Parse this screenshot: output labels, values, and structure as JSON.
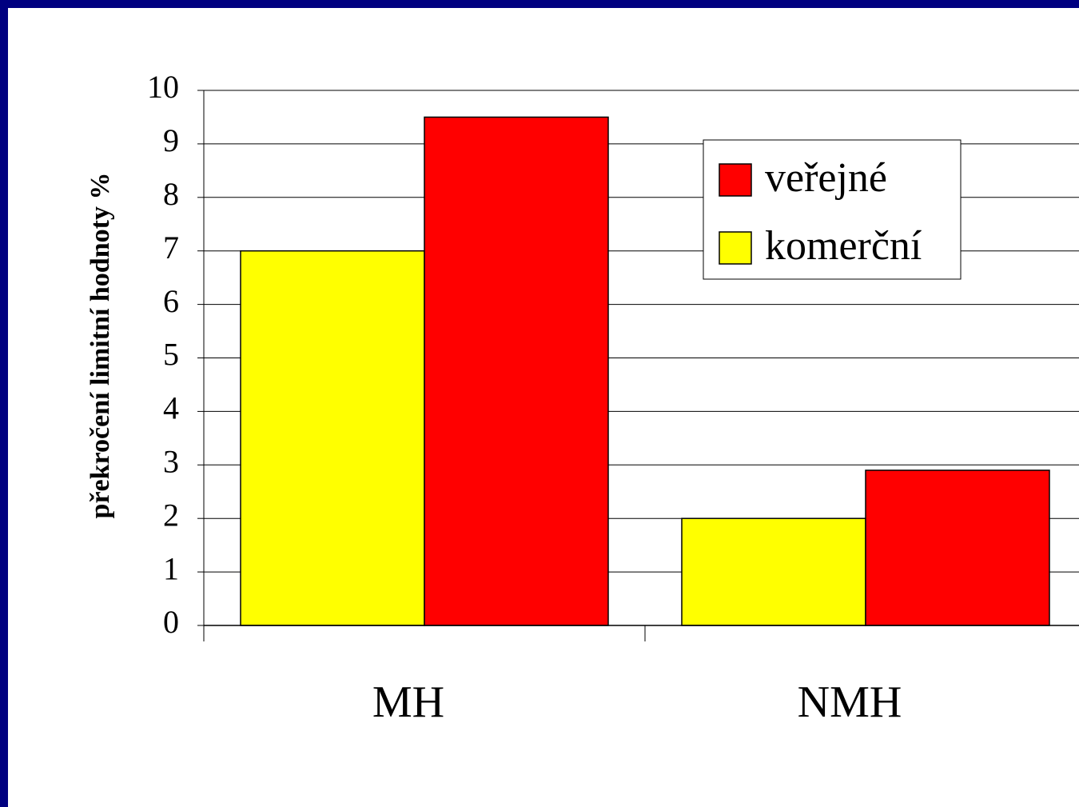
{
  "chart_data": {
    "type": "bar",
    "y_axis_label": "překročení limitní hodnoty  %",
    "categories": [
      "MH",
      "NMH"
    ],
    "series": [
      {
        "name": "komerční",
        "color": "#ffff00",
        "values": [
          7,
          2
        ]
      },
      {
        "name": "veřejné",
        "color": "#ff0000",
        "values": [
          9.5,
          2.9
        ]
      }
    ],
    "ylim": [
      0,
      10
    ],
    "yticks": [
      0,
      1,
      2,
      3,
      4,
      5,
      6,
      7,
      8,
      9,
      10
    ],
    "grid": true,
    "legend": "upper right"
  }
}
